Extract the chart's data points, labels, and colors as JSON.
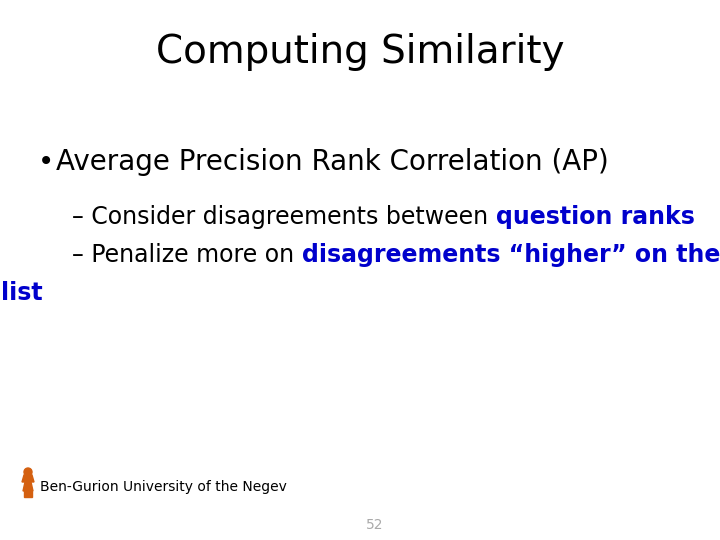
{
  "title": "Computing Similarity",
  "title_fontsize": 28,
  "title_color": "#000000",
  "background_color": "#ffffff",
  "bullet_text": "Average Precision Rank Correlation (AP)",
  "bullet_fontsize": 20,
  "sub1_prefix": "– Consider disagreements between ",
  "sub1_highlight": "question ranks",
  "sub2_prefix": "– Penalize more on ",
  "sub2_highlight": "disagreements “higher” on the",
  "sub3_continuation": "list",
  "highlight_color": "#0000cc",
  "sub_fontsize": 17,
  "footer_text": "Ben-Gurion University of the Negev",
  "footer_fontsize": 10,
  "page_number": "52",
  "page_number_color": "#aaaaaa",
  "footer_color": "#000000",
  "logo_color": "#d46010"
}
